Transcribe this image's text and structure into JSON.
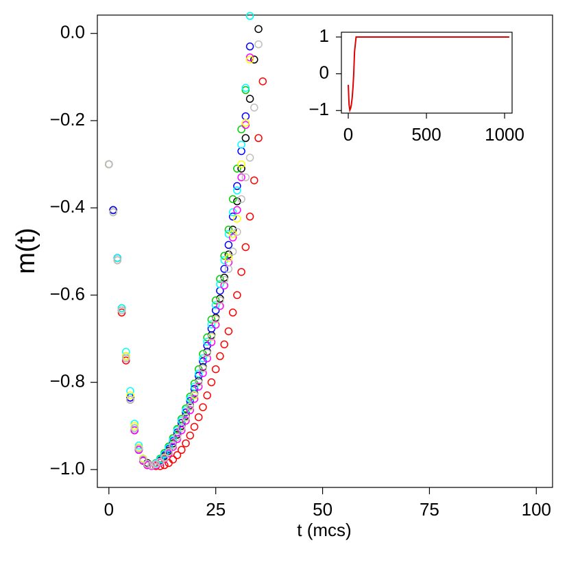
{
  "chart_data": [
    {
      "type": "scatter",
      "xlabel": "t (mcs)",
      "ylabel": "m(t)",
      "x": [
        0,
        1,
        2,
        3,
        4,
        5,
        6,
        7,
        8,
        9,
        10,
        11,
        12,
        13,
        14,
        15,
        16,
        17,
        18,
        19,
        20,
        21,
        22,
        23,
        24,
        25,
        26,
        27,
        28,
        29,
        30,
        31,
        32,
        33,
        34,
        35,
        36
      ],
      "series": [
        {
          "color": "#000000",
          "values": [
            -0.3,
            -0.405,
            -0.515,
            -0.63,
            -0.74,
            -0.835,
            -0.905,
            -0.95,
            -0.975,
            -0.985,
            -0.99,
            -0.987,
            -0.98,
            -0.97,
            -0.957,
            -0.94,
            -0.92,
            -0.9,
            -0.877,
            -0.853,
            -0.826,
            -0.797,
            -0.765,
            -0.73,
            -0.692,
            -0.652,
            -0.608,
            -0.56,
            -0.507,
            -0.45,
            -0.385,
            -0.31,
            -0.24,
            -0.15,
            -0.06,
            0.01,
            null
          ]
        },
        {
          "color": "#ff0000",
          "values": [
            -0.3,
            -0.41,
            -0.52,
            -0.64,
            -0.75,
            -0.84,
            -0.91,
            -0.955,
            -0.98,
            -0.99,
            -0.99,
            -0.992,
            -0.992,
            -0.99,
            -0.985,
            -0.977,
            -0.967,
            -0.955,
            -0.94,
            -0.922,
            -0.902,
            -0.88,
            -0.857,
            -0.83,
            -0.8,
            -0.77,
            -0.74,
            -0.713,
            -0.683,
            -0.64,
            -0.6,
            -0.547,
            -0.49,
            -0.42,
            -0.337,
            -0.24,
            -0.11
          ]
        },
        {
          "color": "#00cd00",
          "values": [
            -0.3,
            -0.41,
            -0.52,
            -0.635,
            -0.745,
            -0.84,
            -0.905,
            -0.955,
            -0.978,
            -0.988,
            -0.99,
            -0.985,
            -0.975,
            -0.962,
            -0.947,
            -0.928,
            -0.907,
            -0.884,
            -0.86,
            -0.833,
            -0.803,
            -0.77,
            -0.735,
            -0.697,
            -0.656,
            -0.612,
            -0.563,
            -0.51,
            -0.45,
            -0.38,
            -0.31,
            -0.22,
            -0.13,
            0.04,
            null,
            null,
            null
          ]
        },
        {
          "color": "#0000ff",
          "values": [
            -0.3,
            -0.405,
            -0.515,
            -0.635,
            -0.745,
            -0.835,
            -0.91,
            -0.955,
            -0.978,
            -0.988,
            -0.99,
            -0.986,
            -0.978,
            -0.967,
            -0.953,
            -0.935,
            -0.915,
            -0.893,
            -0.869,
            -0.843,
            -0.815,
            -0.785,
            -0.752,
            -0.716,
            -0.677,
            -0.635,
            -0.59,
            -0.54,
            -0.485,
            -0.42,
            -0.35,
            -0.27,
            -0.19,
            -0.03,
            null,
            null,
            null
          ]
        },
        {
          "color": "#00ffff",
          "values": [
            -0.3,
            -0.41,
            -0.515,
            -0.63,
            -0.73,
            -0.82,
            -0.895,
            -0.945,
            -0.975,
            -0.987,
            -0.99,
            -0.986,
            -0.977,
            -0.965,
            -0.95,
            -0.932,
            -0.91,
            -0.888,
            -0.864,
            -0.838,
            -0.81,
            -0.78,
            -0.745,
            -0.707,
            -0.667,
            -0.623,
            -0.575,
            -0.52,
            -0.46,
            -0.41,
            -0.36,
            -0.255,
            -0.125,
            0.04,
            null,
            null,
            null
          ]
        },
        {
          "color": "#ff00ff",
          "values": [
            -0.3,
            -0.41,
            -0.52,
            -0.635,
            -0.745,
            -0.84,
            -0.91,
            -0.955,
            -0.98,
            -0.99,
            -0.992,
            -0.99,
            -0.984,
            -0.975,
            -0.963,
            -0.948,
            -0.93,
            -0.91,
            -0.888,
            -0.864,
            -0.838,
            -0.81,
            -0.779,
            -0.745,
            -0.708,
            -0.668,
            -0.625,
            -0.578,
            -0.525,
            -0.468,
            -0.405,
            -0.33,
            -0.21,
            -0.055,
            null,
            null,
            null
          ]
        },
        {
          "color": "#ffff00",
          "values": [
            -0.3,
            -0.41,
            -0.52,
            -0.635,
            -0.74,
            -0.83,
            -0.9,
            -0.95,
            -0.975,
            -0.987,
            -0.99,
            -0.988,
            -0.982,
            -0.973,
            -0.96,
            -0.944,
            -0.925,
            -0.904,
            -0.881,
            -0.856,
            -0.83,
            -0.8,
            -0.768,
            -0.733,
            -0.696,
            -0.656,
            -0.612,
            -0.565,
            -0.515,
            -0.46,
            -0.425,
            -0.3,
            -0.205,
            -0.06,
            null,
            null,
            null
          ]
        },
        {
          "color": "#bebebe",
          "values": [
            -0.3,
            -0.41,
            -0.52,
            -0.635,
            -0.745,
            -0.84,
            -0.905,
            -0.952,
            -0.977,
            -0.987,
            -0.99,
            -0.988,
            -0.982,
            -0.972,
            -0.96,
            -0.944,
            -0.925,
            -0.904,
            -0.88,
            -0.855,
            -0.828,
            -0.8,
            -0.768,
            -0.733,
            -0.695,
            -0.655,
            -0.612,
            -0.565,
            -0.54,
            -0.5,
            -0.455,
            -0.38,
            -0.33,
            -0.285,
            -0.17,
            -0.025,
            null
          ]
        }
      ],
      "xlim": [
        -2.7,
        103.8
      ],
      "xticks": [
        0,
        25,
        50,
        75,
        100
      ],
      "ylim": [
        -1.041,
        0.042
      ],
      "yticks": [
        {
          "value": -1.0,
          "label": "−1.0"
        },
        {
          "value": -0.8,
          "label": "−0.8"
        },
        {
          "value": -0.6,
          "label": "−0.6"
        },
        {
          "value": -0.4,
          "label": "−0.4"
        },
        {
          "value": -0.2,
          "label": "−0.2"
        },
        {
          "value": 0,
          "label": "0.0"
        }
      ]
    },
    {
      "type": "line",
      "x": [
        0,
        5,
        10,
        15,
        20,
        25,
        30,
        35,
        40,
        50,
        100,
        500,
        1000,
        1030
      ],
      "series": [
        {
          "color": "#e00000",
          "values": [
            -0.3,
            -0.84,
            -0.99,
            -0.94,
            -0.83,
            -0.65,
            -0.38,
            0.01,
            0.6,
            1,
            1,
            1,
            1,
            1
          ]
        }
      ],
      "xlim": [
        -44,
        1048
      ],
      "xticks": [
        0,
        500,
        1000
      ],
      "ylim": [
        -1.07,
        1.13
      ],
      "yticks": [
        {
          "value": -1,
          "label": "−1"
        },
        0,
        1
      ]
    }
  ]
}
